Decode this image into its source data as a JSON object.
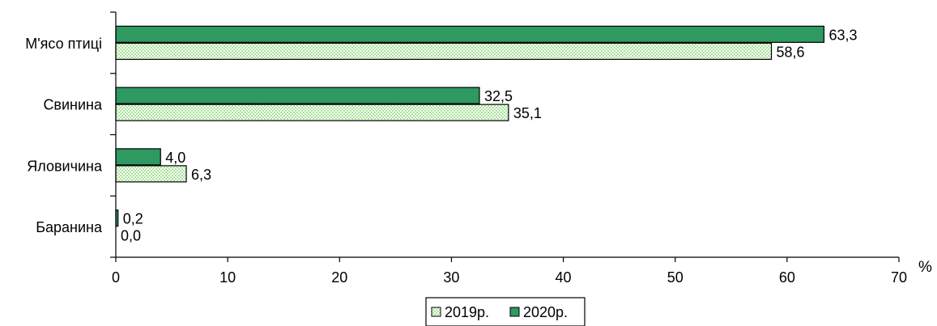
{
  "chart_data": {
    "type": "bar",
    "orientation": "horizontal",
    "categories": [
      "М'ясо птиці",
      "Свинина",
      "Яловичина",
      "Баранина"
    ],
    "series": [
      {
        "name": "2019р.",
        "values": [
          58.6,
          35.1,
          6.3,
          0.0
        ],
        "labels": [
          "58,6",
          "35,1",
          "6,3",
          "0,0"
        ],
        "fill": "pattern-light-green"
      },
      {
        "name": "2020р.",
        "values": [
          63.3,
          32.5,
          4.0,
          0.2
        ],
        "labels": [
          "63,3",
          "32,5",
          "4,0",
          "0,2"
        ],
        "fill": "#2e9960"
      }
    ],
    "xlim": [
      0,
      70
    ],
    "xticks": [
      "0",
      "10",
      "20",
      "30",
      "40",
      "50",
      "60",
      "70"
    ],
    "xlabel": "%",
    "grid": false,
    "legend": {
      "position": "bottom",
      "entries": [
        "2019р.",
        "2020р."
      ]
    },
    "colors": {
      "pattern_light": "#a9e29a",
      "pattern_dark": "#ffffff",
      "dark_green": "#2e9960",
      "outline": "#000000"
    }
  }
}
